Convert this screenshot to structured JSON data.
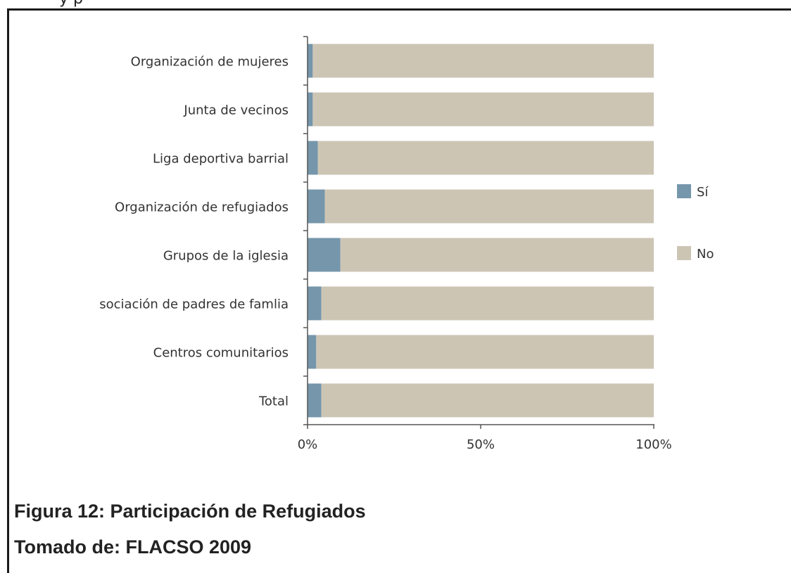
{
  "page": {
    "top_text": "y  p",
    "caption": "Figura 12: Participación de Refugiados",
    "source": "Tomado de: FLACSO 2009"
  },
  "chart_data": {
    "type": "bar",
    "orientation": "horizontal",
    "stacked": true,
    "percent": true,
    "categories": [
      "Organización de mujeres",
      "Junta de vecinos",
      "Liga deportiva barrial",
      "Organización de refugiados",
      "Grupos de la iglesia",
      "sociación de padres de famlia",
      "Centros comunitarios",
      "Total"
    ],
    "series": [
      {
        "name": "Sí",
        "color": "#7596ab",
        "values": [
          1.5,
          1.5,
          3,
          5,
          9.5,
          4,
          2.5,
          4
        ]
      },
      {
        "name": "No",
        "color": "#cdc5b4",
        "values": [
          98.5,
          98.5,
          97,
          95,
          90.5,
          96,
          97.5,
          96
        ]
      }
    ],
    "xlim": [
      0,
      100
    ],
    "xticks": [
      "0%",
      "50%",
      "100%"
    ],
    "xtick_values": [
      0,
      50,
      100
    ],
    "legend_position": "right",
    "grid": false
  }
}
